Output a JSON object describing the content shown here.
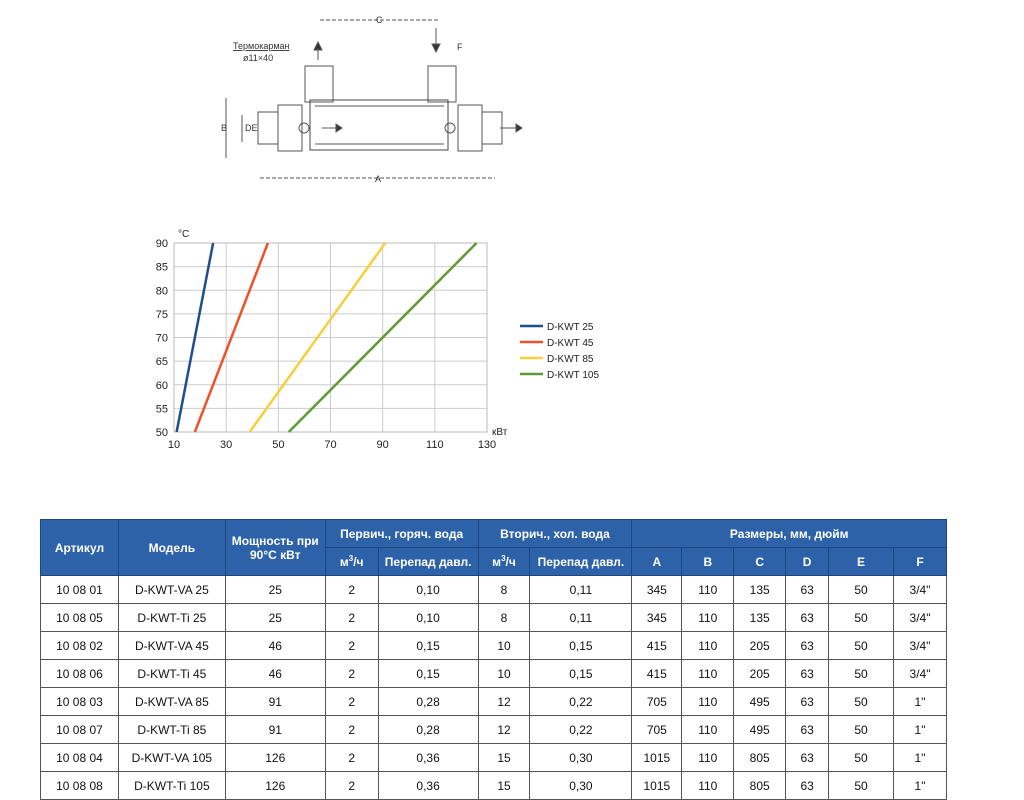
{
  "diagram": {
    "label_thermowell": "Термокарман",
    "label_thermowell_size": "ø11×40",
    "dim_labels": {
      "a": "A",
      "b": "B",
      "c": "C",
      "de": "DE",
      "f": "F"
    }
  },
  "chart_data": {
    "type": "line",
    "xlabel": "кВт",
    "ylabel": "°C",
    "xlim": [
      10,
      130
    ],
    "ylim": [
      50,
      90
    ],
    "xticks": [
      10,
      30,
      50,
      70,
      90,
      110,
      130
    ],
    "yticks": [
      50,
      55,
      60,
      65,
      70,
      75,
      80,
      85,
      90
    ],
    "grid": true,
    "legend": "right",
    "series": [
      {
        "name": "D-KWT 25",
        "color": "#1f4e8c",
        "x": [
          11,
          25
        ],
        "y": [
          50,
          90
        ]
      },
      {
        "name": "D-KWT 45",
        "color": "#f0512a",
        "x": [
          18,
          46
        ],
        "y": [
          50,
          90
        ]
      },
      {
        "name": "D-KWT 85",
        "color": "#f7cf3a",
        "x": [
          39,
          91
        ],
        "y": [
          50,
          90
        ]
      },
      {
        "name": "D-KWT 105",
        "color": "#5f9a35",
        "x": [
          54,
          126
        ],
        "y": [
          50,
          90
        ]
      }
    ]
  },
  "table": {
    "headers": {
      "article": "Артикул",
      "model": "Модель",
      "power": "Мощность при 90°C кВт",
      "primary": "Первич., горяч. вода",
      "secondary": "Вторич., хол. вода",
      "dims": "Размеры, мм, дюйм",
      "flow_unit": "м",
      "flow_sup": "3",
      "flow_suffix": "/ч",
      "pressure_drop": "Перепад давл.",
      "a": "A",
      "b": "B",
      "c": "C",
      "d": "D",
      "e": "E",
      "f": "F"
    },
    "rows": [
      [
        "10 08 01",
        "D-KWT-VA 25",
        "25",
        "2",
        "0,10",
        "8",
        "0,11",
        "345",
        "110",
        "135",
        "63",
        "50",
        "3/4\""
      ],
      [
        "10 08 05",
        "D-KWT-Ti 25",
        "25",
        "2",
        "0,10",
        "8",
        "0,11",
        "345",
        "110",
        "135",
        "63",
        "50",
        "3/4\""
      ],
      [
        "10 08 02",
        "D-KWT-VA 45",
        "46",
        "2",
        "0,15",
        "10",
        "0,15",
        "415",
        "110",
        "205",
        "63",
        "50",
        "3/4\""
      ],
      [
        "10 08 06",
        "D-KWT-Ti 45",
        "46",
        "2",
        "0,15",
        "10",
        "0,15",
        "415",
        "110",
        "205",
        "63",
        "50",
        "3/4\""
      ],
      [
        "10 08 03",
        "D-KWT-VA 85",
        "91",
        "2",
        "0,28",
        "12",
        "0,22",
        "705",
        "110",
        "495",
        "63",
        "50",
        "1\""
      ],
      [
        "10 08 07",
        "D-KWT-Ti 85",
        "91",
        "2",
        "0,28",
        "12",
        "0,22",
        "705",
        "110",
        "495",
        "63",
        "50",
        "1\""
      ],
      [
        "10 08 04",
        "D-KWT-VA 105",
        "126",
        "2",
        "0,36",
        "15",
        "0,30",
        "1015",
        "110",
        "805",
        "63",
        "50",
        "1\""
      ],
      [
        "10 08 08",
        "D-KWT-Ti 105",
        "126",
        "2",
        "0,36",
        "15",
        "0,30",
        "1015",
        "110",
        "805",
        "63",
        "50",
        "1\""
      ]
    ]
  }
}
